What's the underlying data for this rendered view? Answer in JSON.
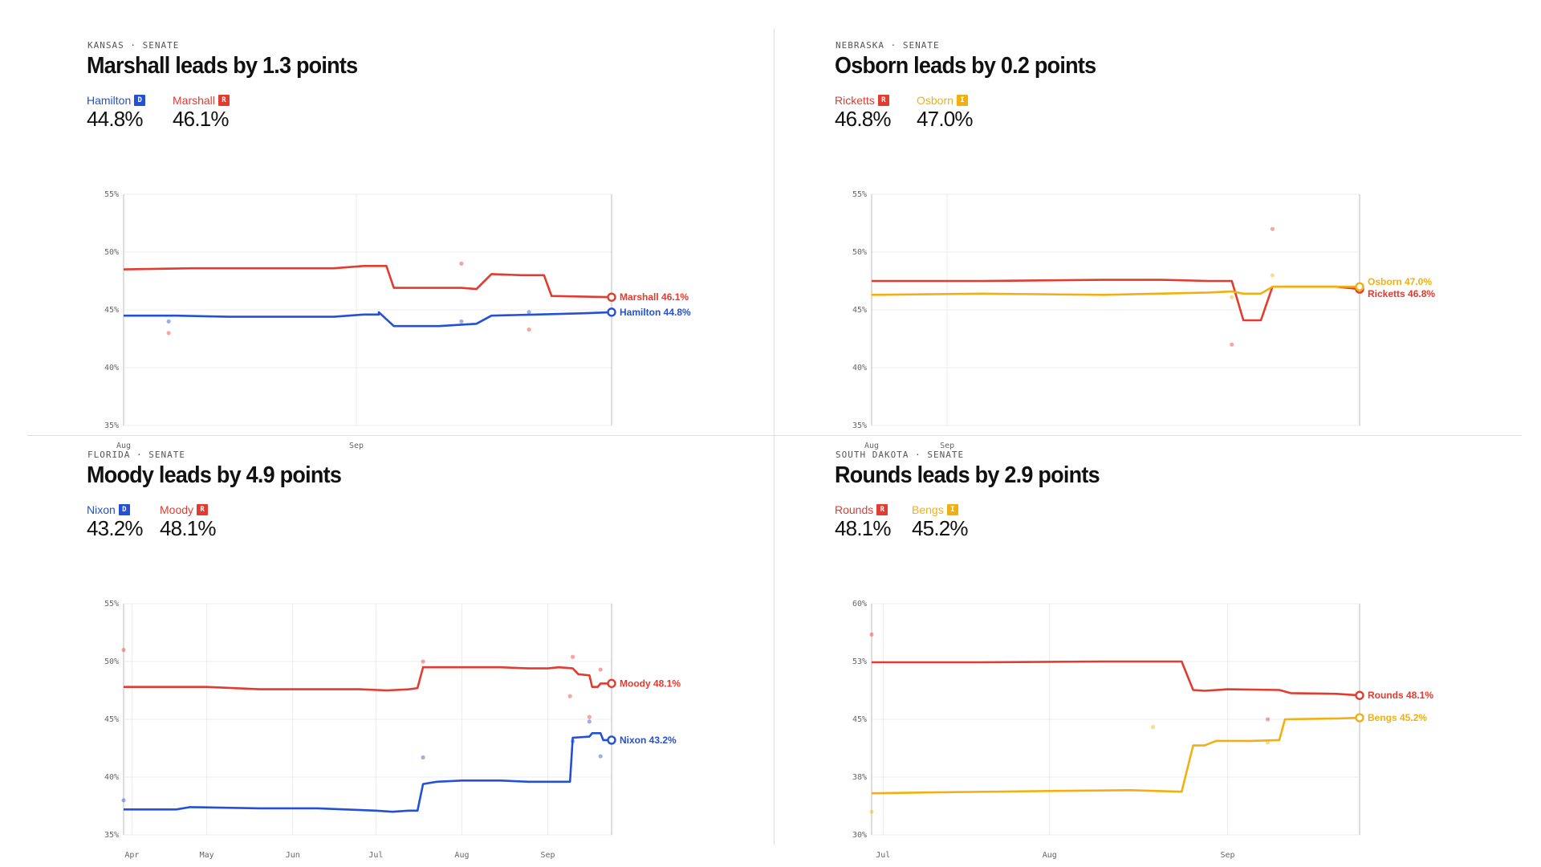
{
  "colors": {
    "D": "#2350d6",
    "R": "#e23b30",
    "I": "#f2b010"
  },
  "panels": [
    {
      "eyebrow": "KANSAS · SENATE",
      "headline": "Marshall leads by 1.3 points",
      "candidates": [
        {
          "name": "Hamilton",
          "party": "D",
          "pct": "44.8%"
        },
        {
          "name": "Marshall",
          "party": "R",
          "pct": "46.1%"
        }
      ]
    },
    {
      "eyebrow": "NEBRASKA · SENATE",
      "headline": "Osborn leads by 0.2 points",
      "candidates": [
        {
          "name": "Ricketts",
          "party": "R",
          "pct": "46.8%"
        },
        {
          "name": "Osborn",
          "party": "I",
          "pct": "47.0%"
        }
      ]
    },
    {
      "eyebrow": "FLORIDA · SENATE",
      "headline": "Moody leads by 4.9 points",
      "candidates": [
        {
          "name": "Nixon",
          "party": "D",
          "pct": "43.2%"
        },
        {
          "name": "Moody",
          "party": "R",
          "pct": "48.1%"
        }
      ]
    },
    {
      "eyebrow": "SOUTH DAKOTA · SENATE",
      "headline": "Rounds leads by 2.9 points",
      "candidates": [
        {
          "name": "Rounds",
          "party": "R",
          "pct": "48.1%"
        },
        {
          "name": "Bengs",
          "party": "I",
          "pct": "45.2%"
        }
      ]
    }
  ],
  "chart_data": [
    {
      "type": "line",
      "title": "Marshall leads by 1.3 points",
      "x_domain": [
        "2024-08-01",
        "2024-10-05"
      ],
      "x_ticks": [
        {
          "date": "2024-08-01",
          "label": "Aug"
        },
        {
          "date": "2024-09-01",
          "label": "Sep"
        }
      ],
      "ylim": [
        35,
        55
      ],
      "y_ticks": [
        {
          "v": 55,
          "label": "55%"
        },
        {
          "v": 50,
          "label": "50%"
        },
        {
          "v": 45,
          "label": "45%"
        },
        {
          "v": 40,
          "label": "40%"
        },
        {
          "v": 35,
          "label": "35%"
        }
      ],
      "series": [
        {
          "name": "Hamilton",
          "party": "D",
          "end_label": "Hamilton 44.8%",
          "points": [
            [
              "2024-08-01",
              44.5
            ],
            [
              "2024-08-08",
              44.5
            ],
            [
              "2024-08-15",
              44.4
            ],
            [
              "2024-08-22",
              44.4
            ],
            [
              "2024-08-29",
              44.4
            ],
            [
              "2024-09-02",
              44.6
            ],
            [
              "2024-09-04",
              44.6
            ],
            [
              "2024-09-04",
              44.8
            ],
            [
              "2024-09-06",
              43.6
            ],
            [
              "2024-09-12",
              43.6
            ],
            [
              "2024-09-17",
              43.8
            ],
            [
              "2024-09-19",
              44.5
            ],
            [
              "2024-09-25",
              44.6
            ],
            [
              "2024-10-01",
              44.7
            ],
            [
              "2024-10-05",
              44.8
            ]
          ]
        },
        {
          "name": "Marshall",
          "party": "R",
          "end_label": "Marshall 46.1%",
          "points": [
            [
              "2024-08-01",
              48.5
            ],
            [
              "2024-08-10",
              48.6
            ],
            [
              "2024-08-20",
              48.6
            ],
            [
              "2024-08-29",
              48.6
            ],
            [
              "2024-09-02",
              48.8
            ],
            [
              "2024-09-05",
              48.8
            ],
            [
              "2024-09-06",
              46.9
            ],
            [
              "2024-09-15",
              46.9
            ],
            [
              "2024-09-17",
              46.8
            ],
            [
              "2024-09-19",
              48.1
            ],
            [
              "2024-09-23",
              48.0
            ],
            [
              "2024-09-26",
              48.0
            ],
            [
              "2024-09-27",
              46.2
            ],
            [
              "2024-10-05",
              46.1
            ]
          ]
        }
      ],
      "polls": [
        {
          "party": "D",
          "date": "2024-08-07",
          "v": 44.0
        },
        {
          "party": "R",
          "date": "2024-08-07",
          "v": 43.0
        },
        {
          "party": "R",
          "date": "2024-09-15",
          "v": 49.0
        },
        {
          "party": "D",
          "date": "2024-09-15",
          "v": 44.0
        },
        {
          "party": "D",
          "date": "2024-09-24",
          "v": 44.8
        },
        {
          "party": "R",
          "date": "2024-09-24",
          "v": 43.3
        }
      ]
    },
    {
      "type": "line",
      "title": "Osborn leads by 0.2 points",
      "x_domain": [
        "2024-08-01",
        "2024-10-24"
      ],
      "x_ticks": [
        {
          "date": "2024-08-01",
          "label": "Aug"
        },
        {
          "date": "2024-08-14",
          "label": "Sep"
        }
      ],
      "ylim": [
        35,
        55
      ],
      "y_ticks": [
        {
          "v": 55,
          "label": "55%"
        },
        {
          "v": 50,
          "label": "50%"
        },
        {
          "v": 45,
          "label": "45%"
        },
        {
          "v": 40,
          "label": "40%"
        },
        {
          "v": 35,
          "label": "35%"
        }
      ],
      "series": [
        {
          "name": "Ricketts",
          "party": "R",
          "end_label": "Ricketts 46.8%",
          "points": [
            [
              "2024-08-01",
              47.5
            ],
            [
              "2024-08-20",
              47.5
            ],
            [
              "2024-09-10",
              47.6
            ],
            [
              "2024-09-20",
              47.6
            ],
            [
              "2024-09-28",
              47.5
            ],
            [
              "2024-10-02",
              47.5
            ],
            [
              "2024-10-04",
              44.1
            ],
            [
              "2024-10-07",
              44.1
            ],
            [
              "2024-10-09",
              47.0
            ],
            [
              "2024-10-20",
              47.0
            ],
            [
              "2024-10-24",
              46.8
            ]
          ]
        },
        {
          "name": "Osborn",
          "party": "I",
          "end_label": "Osborn 47.0%",
          "points": [
            [
              "2024-08-01",
              46.3
            ],
            [
              "2024-08-20",
              46.4
            ],
            [
              "2024-09-10",
              46.3
            ],
            [
              "2024-09-28",
              46.5
            ],
            [
              "2024-10-02",
              46.6
            ],
            [
              "2024-10-04",
              46.4
            ],
            [
              "2024-10-07",
              46.4
            ],
            [
              "2024-10-09",
              47.0
            ],
            [
              "2024-10-24",
              47.0
            ]
          ]
        }
      ],
      "polls": [
        {
          "party": "R",
          "date": "2024-10-09",
          "v": 52.0
        },
        {
          "party": "I",
          "date": "2024-10-09",
          "v": 48.0
        },
        {
          "party": "R",
          "date": "2024-10-02",
          "v": 42.0
        },
        {
          "party": "I",
          "date": "2024-10-02",
          "v": 46.1
        }
      ]
    },
    {
      "type": "line",
      "title": "Moody leads by 4.9 points",
      "x_domain": [
        "2024-04-01",
        "2024-09-24"
      ],
      "x_ticks": [
        {
          "date": "2024-04-04",
          "label": "Apr"
        },
        {
          "date": "2024-05-01",
          "label": "May"
        },
        {
          "date": "2024-06-01",
          "label": "Jun"
        },
        {
          "date": "2024-07-01",
          "label": "Jul"
        },
        {
          "date": "2024-08-01",
          "label": "Aug"
        },
        {
          "date": "2024-09-01",
          "label": "Sep"
        }
      ],
      "ylim": [
        35,
        55
      ],
      "y_ticks": [
        {
          "v": 55,
          "label": "55%"
        },
        {
          "v": 50,
          "label": "50%"
        },
        {
          "v": 45,
          "label": "45%"
        },
        {
          "v": 40,
          "label": "40%"
        },
        {
          "v": 35,
          "label": "35%"
        }
      ],
      "series": [
        {
          "name": "Nixon",
          "party": "D",
          "end_label": "Nixon 43.2%",
          "points": [
            [
              "2024-04-01",
              37.2
            ],
            [
              "2024-04-20",
              37.2
            ],
            [
              "2024-04-25",
              37.4
            ],
            [
              "2024-05-20",
              37.3
            ],
            [
              "2024-06-10",
              37.3
            ],
            [
              "2024-06-20",
              37.2
            ],
            [
              "2024-07-01",
              37.1
            ],
            [
              "2024-07-07",
              37.0
            ],
            [
              "2024-07-13",
              37.1
            ],
            [
              "2024-07-16",
              37.1
            ],
            [
              "2024-07-18",
              39.4
            ],
            [
              "2024-07-23",
              39.6
            ],
            [
              "2024-08-01",
              39.7
            ],
            [
              "2024-08-15",
              39.7
            ],
            [
              "2024-08-25",
              39.6
            ],
            [
              "2024-09-01",
              39.6
            ],
            [
              "2024-09-06",
              39.6
            ],
            [
              "2024-09-09",
              39.6
            ],
            [
              "2024-09-10",
              43.4
            ],
            [
              "2024-09-16",
              43.5
            ],
            [
              "2024-09-17",
              43.8
            ],
            [
              "2024-09-20",
              43.8
            ],
            [
              "2024-09-21",
              43.2
            ],
            [
              "2024-09-24",
              43.2
            ]
          ]
        },
        {
          "name": "Moody",
          "party": "R",
          "end_label": "Moody 48.1%",
          "points": [
            [
              "2024-04-01",
              47.8
            ],
            [
              "2024-04-20",
              47.8
            ],
            [
              "2024-05-01",
              47.8
            ],
            [
              "2024-05-20",
              47.6
            ],
            [
              "2024-06-10",
              47.6
            ],
            [
              "2024-06-25",
              47.6
            ],
            [
              "2024-07-05",
              47.5
            ],
            [
              "2024-07-13",
              47.6
            ],
            [
              "2024-07-16",
              47.7
            ],
            [
              "2024-07-18",
              49.5
            ],
            [
              "2024-08-01",
              49.5
            ],
            [
              "2024-08-15",
              49.5
            ],
            [
              "2024-08-25",
              49.4
            ],
            [
              "2024-09-01",
              49.4
            ],
            [
              "2024-09-05",
              49.5
            ],
            [
              "2024-09-10",
              49.4
            ],
            [
              "2024-09-12",
              48.9
            ],
            [
              "2024-09-16",
              48.8
            ],
            [
              "2024-09-17",
              47.8
            ],
            [
              "2024-09-19",
              47.8
            ],
            [
              "2024-09-20",
              48.1
            ],
            [
              "2024-09-24",
              48.1
            ]
          ]
        }
      ],
      "polls": [
        {
          "party": "R",
          "date": "2024-04-01",
          "v": 51.0
        },
        {
          "party": "D",
          "date": "2024-04-01",
          "v": 38.0
        },
        {
          "party": "R",
          "date": "2024-07-18",
          "v": 50.0
        },
        {
          "party": "D",
          "date": "2024-07-18",
          "v": 41.7
        },
        {
          "party": "R",
          "date": "2024-09-09",
          "v": 47.0
        },
        {
          "party": "R",
          "date": "2024-09-10",
          "v": 50.4
        },
        {
          "party": "D",
          "date": "2024-09-10",
          "v": 43.1
        },
        {
          "party": "R",
          "date": "2024-09-16",
          "v": 45.2
        },
        {
          "party": "D",
          "date": "2024-09-16",
          "v": 44.8
        },
        {
          "party": "R",
          "date": "2024-09-20",
          "v": 49.3
        },
        {
          "party": "D",
          "date": "2024-09-20",
          "v": 41.8
        }
      ]
    },
    {
      "type": "line",
      "title": "Rounds leads by 2.9 points",
      "x_domain": [
        "2024-07-01",
        "2024-09-24"
      ],
      "x_ticks": [
        {
          "date": "2024-07-03",
          "label": "Jul"
        },
        {
          "date": "2024-08-01",
          "label": "Aug"
        },
        {
          "date": "2024-09-01",
          "label": "Sep"
        }
      ],
      "ylim": [
        30,
        60
      ],
      "y_ticks": [
        {
          "v": 60,
          "label": "60%"
        },
        {
          "v": 52.5,
          "label": "53%"
        },
        {
          "v": 45,
          "label": "45%"
        },
        {
          "v": 37.5,
          "label": "38%"
        },
        {
          "v": 30,
          "label": "30%"
        }
      ],
      "series": [
        {
          "name": "Rounds",
          "party": "R",
          "end_label": "Rounds 48.1%",
          "points": [
            [
              "2024-07-01",
              52.4
            ],
            [
              "2024-07-20",
              52.4
            ],
            [
              "2024-08-10",
              52.5
            ],
            [
              "2024-08-24",
              52.5
            ],
            [
              "2024-08-26",
              48.8
            ],
            [
              "2024-08-28",
              48.7
            ],
            [
              "2024-09-01",
              48.9
            ],
            [
              "2024-09-10",
              48.8
            ],
            [
              "2024-09-12",
              48.4
            ],
            [
              "2024-09-20",
              48.3
            ],
            [
              "2024-09-24",
              48.1
            ]
          ]
        },
        {
          "name": "Bengs",
          "party": "I",
          "end_label": "Bengs 45.2%",
          "points": [
            [
              "2024-07-01",
              35.4
            ],
            [
              "2024-07-10",
              35.5
            ],
            [
              "2024-08-01",
              35.7
            ],
            [
              "2024-08-15",
              35.8
            ],
            [
              "2024-08-24",
              35.6
            ],
            [
              "2024-08-26",
              41.6
            ],
            [
              "2024-08-28",
              41.6
            ],
            [
              "2024-08-30",
              42.2
            ],
            [
              "2024-09-05",
              42.2
            ],
            [
              "2024-09-10",
              42.3
            ],
            [
              "2024-09-11",
              45.0
            ],
            [
              "2024-09-20",
              45.1
            ],
            [
              "2024-09-24",
              45.2
            ]
          ]
        }
      ],
      "polls": [
        {
          "party": "R",
          "date": "2024-07-01",
          "v": 56.0
        },
        {
          "party": "I",
          "date": "2024-07-01",
          "v": 33.0
        },
        {
          "party": "I",
          "date": "2024-08-19",
          "v": 44.0
        },
        {
          "party": "R",
          "date": "2024-09-08",
          "v": 45.0
        },
        {
          "party": "I",
          "date": "2024-09-08",
          "v": 42.0
        }
      ]
    }
  ]
}
